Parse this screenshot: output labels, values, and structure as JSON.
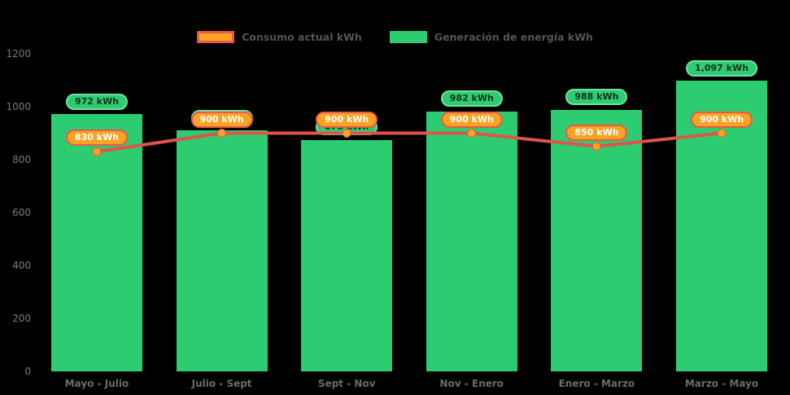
{
  "legend": {
    "items": [
      {
        "label": "Consumo actual kWh",
        "swatch_color": "#f7a422",
        "swatch_border": "#e8584b"
      },
      {
        "label": "Generación de energía kWh",
        "swatch_color": "#2ecc71",
        "swatch_border": "#2ecc71"
      }
    ]
  },
  "chart_data": {
    "type": "bar",
    "title": "",
    "categories": [
      "Mayo - Julio",
      "Julio - Sept",
      "Sept - Nov",
      "Nov - Enero",
      "Enero - Marzo",
      "Marzo - Mayo"
    ],
    "series": [
      {
        "name": "Generación de energía kWh",
        "type": "bar",
        "color": "#2ecc71",
        "values": [
          972,
          910,
          875,
          982,
          988,
          1097
        ],
        "labels": [
          "972 kWh",
          "910 kWh",
          "875 kWh",
          "982 kWh",
          "988 kWh",
          "1,097 kWh"
        ]
      },
      {
        "name": "Consumo actual kWh",
        "type": "line",
        "color": "#e0534a",
        "point_color": "#f7a422",
        "values": [
          830,
          900,
          900,
          900,
          850,
          900
        ],
        "labels": [
          "830 kWh",
          "900 kWh",
          "900 kWh",
          "900 kWh",
          "850 kWh",
          "900 kWh"
        ]
      }
    ],
    "ylim": [
      0,
      1200
    ],
    "yticks": [
      0,
      200,
      400,
      600,
      800,
      1000,
      1200
    ],
    "grid": false,
    "legend_position": "top",
    "background": "#000000",
    "label_style": {
      "bar_label_bg": "#2ecc71",
      "bar_label_border": "#72dfa2",
      "bar_label_text": "#14321f",
      "line_label_bg": "#f7a422",
      "line_label_border": "#e8584b",
      "line_label_text": "#ffffff"
    }
  }
}
